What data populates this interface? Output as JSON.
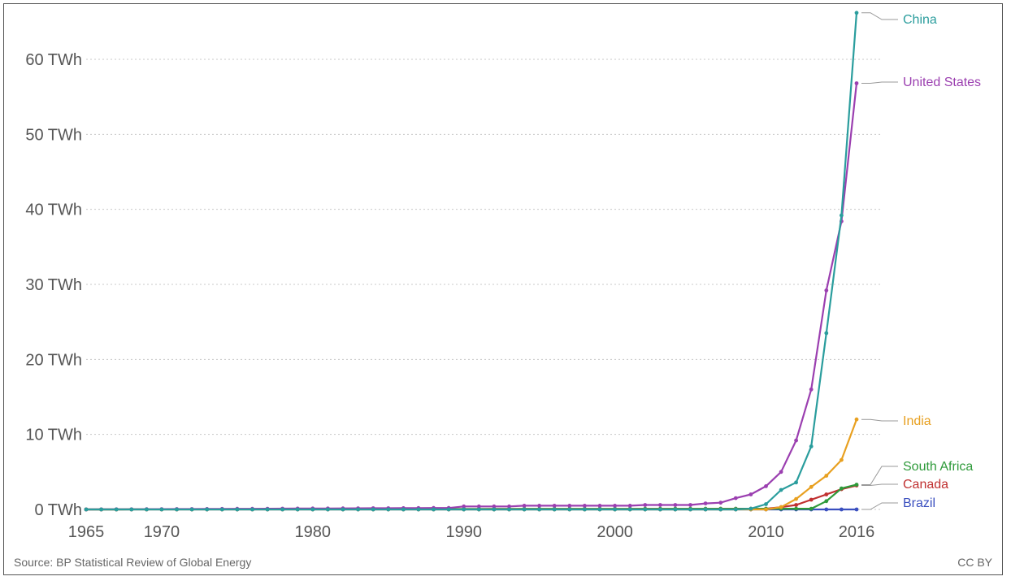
{
  "chart_data": {
    "type": "line",
    "title": "",
    "xlabel": "",
    "ylabel": "",
    "x_range": [
      1965,
      2016
    ],
    "ylim": [
      0,
      66
    ],
    "y_unit": "TWh",
    "grid": true,
    "legend": "inline-right",
    "y_ticks": [
      {
        "v": 0,
        "label": "0 TWh"
      },
      {
        "v": 10,
        "label": "10 TWh"
      },
      {
        "v": 20,
        "label": "20 TWh"
      },
      {
        "v": 30,
        "label": "30 TWh"
      },
      {
        "v": 40,
        "label": "40 TWh"
      },
      {
        "v": 50,
        "label": "50 TWh"
      },
      {
        "v": 60,
        "label": "60 TWh"
      }
    ],
    "x_ticks": [
      {
        "v": 1965,
        "label": "1965"
      },
      {
        "v": 1970,
        "label": "1970"
      },
      {
        "v": 1980,
        "label": "1980"
      },
      {
        "v": 1990,
        "label": "1990"
      },
      {
        "v": 2000,
        "label": "2000"
      },
      {
        "v": 2010,
        "label": "2010"
      },
      {
        "v": 2016,
        "label": "2016"
      }
    ],
    "series": [
      {
        "name": "China",
        "color": "#2a9d9d",
        "points": [
          [
            1965,
            0
          ],
          [
            1989,
            0
          ],
          [
            2000,
            0
          ],
          [
            2005,
            0
          ],
          [
            2008,
            0
          ],
          [
            2009,
            0.1
          ],
          [
            2010,
            0.7
          ],
          [
            2011,
            2.6
          ],
          [
            2012,
            3.6
          ],
          [
            2013,
            8.4
          ],
          [
            2014,
            23.5
          ],
          [
            2015,
            39.2
          ],
          [
            2016,
            66.2
          ]
        ]
      },
      {
        "name": "United States",
        "color": "#9b3fb0",
        "points": [
          [
            1965,
            0
          ],
          [
            1989,
            0.2
          ],
          [
            1990,
            0.4
          ],
          [
            1991,
            0.4
          ],
          [
            1992,
            0.4
          ],
          [
            1993,
            0.4
          ],
          [
            1994,
            0.5
          ],
          [
            1995,
            0.5
          ],
          [
            1996,
            0.5
          ],
          [
            1997,
            0.5
          ],
          [
            1998,
            0.5
          ],
          [
            1999,
            0.5
          ],
          [
            2000,
            0.5
          ],
          [
            2001,
            0.5
          ],
          [
            2002,
            0.6
          ],
          [
            2003,
            0.6
          ],
          [
            2004,
            0.6
          ],
          [
            2005,
            0.6
          ],
          [
            2006,
            0.8
          ],
          [
            2007,
            0.9
          ],
          [
            2008,
            1.5
          ],
          [
            2009,
            2.0
          ],
          [
            2010,
            3.1
          ],
          [
            2011,
            5.0
          ],
          [
            2012,
            9.2
          ],
          [
            2013,
            16.0
          ],
          [
            2014,
            29.2
          ],
          [
            2015,
            38.4
          ],
          [
            2016,
            56.8
          ]
        ]
      },
      {
        "name": "India",
        "color": "#e8a020",
        "points": [
          [
            1965,
            0
          ],
          [
            2010,
            0
          ],
          [
            2011,
            0.3
          ],
          [
            2012,
            1.4
          ],
          [
            2013,
            3.0
          ],
          [
            2014,
            4.5
          ],
          [
            2015,
            6.6
          ],
          [
            2016,
            12.0
          ]
        ]
      },
      {
        "name": "South Africa",
        "color": "#2e9a3a",
        "points": [
          [
            1965,
            0
          ],
          [
            2013,
            0.1
          ],
          [
            2014,
            1.1
          ],
          [
            2015,
            2.8
          ],
          [
            2016,
            3.3
          ]
        ]
      },
      {
        "name": "Canada",
        "color": "#c03030",
        "points": [
          [
            1965,
            0
          ],
          [
            2010,
            0.1
          ],
          [
            2011,
            0.3
          ],
          [
            2012,
            0.6
          ],
          [
            2013,
            1.3
          ],
          [
            2014,
            2.0
          ],
          [
            2015,
            2.7
          ],
          [
            2016,
            3.2
          ]
        ]
      },
      {
        "name": "Brazil",
        "color": "#3a4fbf",
        "points": [
          [
            1965,
            0
          ],
          [
            2016,
            0
          ]
        ]
      }
    ]
  },
  "footer": {
    "source": "Source: BP Statistical Review of Global Energy",
    "license": "CC BY"
  }
}
